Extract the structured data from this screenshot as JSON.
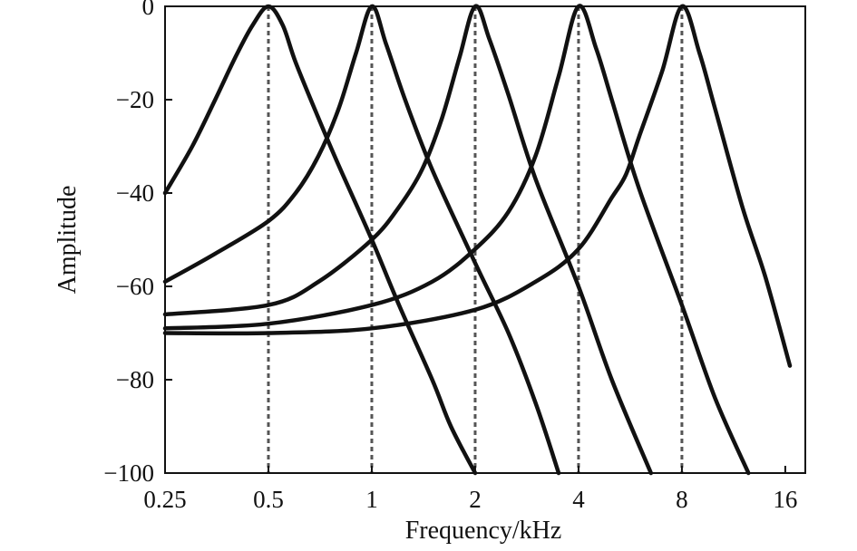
{
  "chart_data": {
    "type": "line",
    "title": "",
    "xlabel": "Frequency/kHz",
    "ylabel": "Amplitude",
    "x_scale": "log2",
    "xlim": [
      0.25,
      18.3
    ],
    "ylim": [
      -100,
      0
    ],
    "x_ticks": [
      0.25,
      0.5,
      1,
      2,
      4,
      8,
      16
    ],
    "x_tick_labels": [
      "0.25",
      "0.5",
      "1",
      "2",
      "4",
      "8",
      "16"
    ],
    "y_ticks": [
      0,
      -20,
      -40,
      -60,
      -80,
      -100
    ],
    "y_tick_labels": [
      "0",
      "−20",
      "−40",
      "−60",
      "−80",
      "−100"
    ],
    "grid": false,
    "legend": "none",
    "colors": {
      "line": "#111111",
      "marker_line": "#555555"
    },
    "center_frequency_markers": [
      0.5,
      1,
      2,
      4,
      8
    ],
    "series": [
      {
        "x": [
          0.25,
          0.3,
          0.35,
          0.4,
          0.45,
          0.5,
          0.55,
          0.6,
          0.7,
          0.8,
          1.0,
          1.2,
          1.5,
          1.7,
          2.0
        ],
        "values": [
          -40,
          -30,
          -20,
          -11,
          -4,
          0,
          -4,
          -12,
          -24,
          -34,
          -50,
          -64,
          -80,
          -90,
          -100
        ]
      },
      {
        "x": [
          0.25,
          0.35,
          0.5,
          0.6,
          0.7,
          0.8,
          0.9,
          1.0,
          1.1,
          1.25,
          1.5,
          2.0,
          2.5,
          3.0,
          3.5
        ],
        "values": [
          -59,
          -53,
          -46,
          -40,
          -32,
          -22,
          -10,
          0,
          -8,
          -20,
          -35,
          -55,
          -70,
          -85,
          -100
        ]
      },
      {
        "x": [
          0.25,
          0.5,
          0.7,
          1.0,
          1.2,
          1.4,
          1.6,
          1.8,
          2.0,
          2.2,
          2.5,
          3.0,
          4.0,
          5.0,
          6.5
        ],
        "values": [
          -66,
          -64,
          -59,
          -50,
          -43,
          -35,
          -24,
          -11,
          0,
          -7,
          -19,
          -37,
          -60,
          -80,
          -100
        ]
      },
      {
        "x": [
          0.25,
          0.5,
          1.0,
          1.5,
          2.0,
          2.5,
          3.0,
          3.5,
          4.0,
          4.5,
          5.0,
          6.0,
          8.0,
          10.0,
          12.5
        ],
        "values": [
          -69,
          -68,
          -64,
          -59,
          -52,
          -44,
          -32,
          -15,
          0,
          -9,
          -20,
          -39,
          -64,
          -84,
          -100
        ]
      },
      {
        "x": [
          0.25,
          0.5,
          1.0,
          2.0,
          3.0,
          4.0,
          5.0,
          5.5,
          6.0,
          7.0,
          8.0,
          9.0,
          10.0,
          12.0,
          14.0,
          16.5
        ],
        "values": [
          -70,
          -70,
          -69,
          -65,
          -59,
          -52,
          -41,
          -36,
          -28,
          -14,
          0,
          -10,
          -22,
          -43,
          -58,
          -77
        ]
      }
    ]
  }
}
